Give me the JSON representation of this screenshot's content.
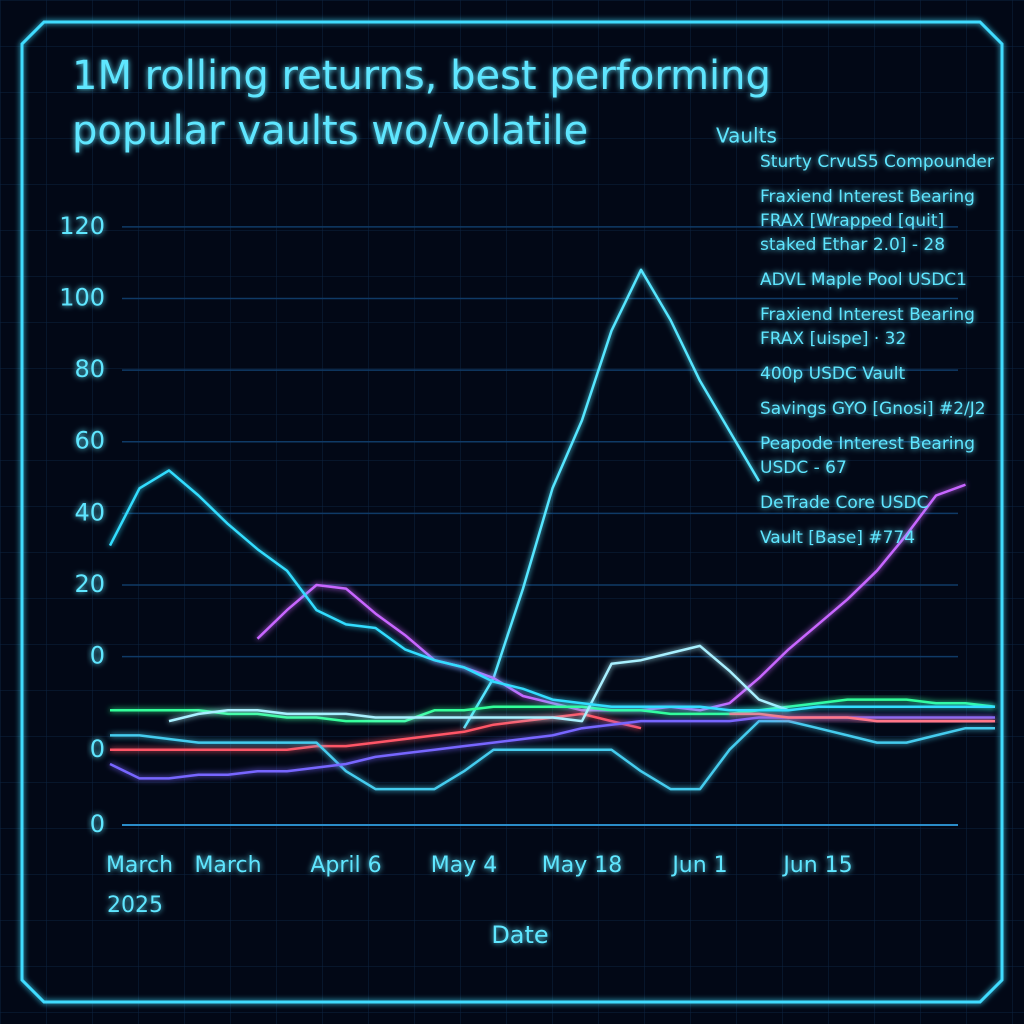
{
  "chart_data": {
    "type": "line",
    "title": "1M rolling returns, best performing popular vaults wo/volatile",
    "x_label": "Date",
    "x_sublabel": "2025",
    "legend_title": "Vaults",
    "categories": [
      null,
      "March",
      null,
      null,
      "March",
      null,
      null,
      null,
      "April 6",
      null,
      null,
      null,
      "May 4",
      null,
      null,
      null,
      "May 18",
      null,
      null,
      null,
      "Jun 1",
      null,
      null,
      null,
      "Jun 15",
      null,
      null,
      null,
      null,
      null,
      null
    ],
    "ylim": [
      -54,
      127.5
    ],
    "yticks": [
      0,
      20,
      40,
      60,
      80,
      100,
      120
    ],
    "y_extra_labels": [
      "0",
      "0"
    ],
    "grid": true,
    "series": [
      {
        "name": "Sturty CrvuS5 Compounder",
        "color": "#55e6ff",
        "values": [
          null,
          null,
          null,
          null,
          null,
          null,
          null,
          null,
          null,
          null,
          null,
          null,
          -20,
          -6,
          19,
          47,
          66,
          91,
          108,
          94,
          77,
          63,
          49,
          null,
          null,
          null,
          null,
          null,
          null,
          null,
          null
        ]
      },
      {
        "name": "Fraxiend Interest Bearing FRAX [Wrapped [quit] staked Ethar 2.0] - 28",
        "color": "#c866ff",
        "values": [
          null,
          null,
          null,
          null,
          null,
          5,
          13,
          20,
          19,
          12,
          6,
          -1,
          -3,
          -6,
          -11,
          -13,
          -15,
          -15,
          -15,
          -14,
          -15,
          -13,
          -6,
          2,
          9,
          16,
          24,
          34,
          45,
          48,
          null
        ]
      },
      {
        "name": "ADVL Maple Pool USDC1",
        "color": "#33ff99",
        "values": [
          -15,
          -15,
          -15,
          -15,
          -16,
          -16,
          -17,
          -17,
          -18,
          -18,
          -18,
          -15,
          -15,
          -14,
          -14,
          -14,
          -14,
          -15,
          -15,
          -16,
          -16,
          -16,
          -15,
          -14,
          -13,
          -12,
          -12,
          -12,
          -13,
          -13,
          -14
        ]
      },
      {
        "name": "Fraxiend Interest Bearing FRAX [uispe] · 32",
        "color": "#ff5566",
        "values": [
          -26,
          -26,
          -26,
          -26,
          -26,
          -26,
          -26,
          -25,
          -25,
          -24,
          -23,
          -22,
          -21,
          -19,
          -18,
          -17,
          -16,
          -18,
          -20,
          null,
          null,
          null,
          null,
          null,
          null,
          null,
          null,
          null,
          null,
          null,
          null
        ]
      },
      {
        "name": "400p USDC Vault",
        "color": "#44ccee",
        "values": [
          -22,
          -22,
          -23,
          -24,
          -24,
          -24,
          -24,
          -24,
          -32,
          -37,
          -37,
          -37,
          -32,
          -26,
          -26,
          -26,
          -26,
          -26,
          -32,
          -37,
          -37,
          -26,
          -18,
          -18,
          -20,
          -22,
          -24,
          -24,
          -22,
          -20,
          -20
        ]
      },
      {
        "name": "Savings GYO [Gnosi] #2/J2",
        "color": "#7766ff",
        "values": [
          -30,
          -34,
          -34,
          -33,
          -33,
          -32,
          -32,
          -31,
          -30,
          -28,
          -27,
          -26,
          -25,
          -24,
          -23,
          -22,
          -20,
          -19,
          -18,
          -18,
          -18,
          -18,
          -17,
          -17,
          -17,
          -17,
          -17,
          -17,
          -17,
          -17,
          -17
        ]
      },
      {
        "name": "Peapode Interest Bearing USDC - 67",
        "color": "#a8f0ff",
        "values": [
          null,
          null,
          -18,
          -16,
          -15,
          -15,
          -16,
          -16,
          -16,
          -17,
          -17,
          -17,
          -17,
          -17,
          -17,
          -17,
          -18,
          -2,
          -1,
          1,
          3,
          -4,
          -12,
          -15,
          null,
          null,
          null,
          null,
          null,
          null,
          null
        ]
      },
      {
        "name": "DeTrade Core USDC",
        "color": "#ff7788",
        "values": [
          null,
          null,
          null,
          null,
          null,
          null,
          null,
          null,
          null,
          null,
          null,
          null,
          null,
          null,
          null,
          null,
          null,
          null,
          null,
          null,
          null,
          -16,
          -16,
          -17,
          -17,
          -17,
          -18,
          -18,
          -18,
          -18,
          -18
        ]
      },
      {
        "name": "Vault [Base] #774",
        "color": "#33ddff",
        "values": [
          31,
          47,
          52,
          45,
          37,
          30,
          24,
          13,
          9,
          8,
          2,
          -1,
          -3,
          -7,
          -9,
          -12,
          -13,
          -14,
          -14,
          -14,
          -14,
          -15,
          -15,
          -15,
          -14,
          -14,
          -14,
          -14,
          -14,
          -14,
          -14
        ]
      }
    ]
  }
}
